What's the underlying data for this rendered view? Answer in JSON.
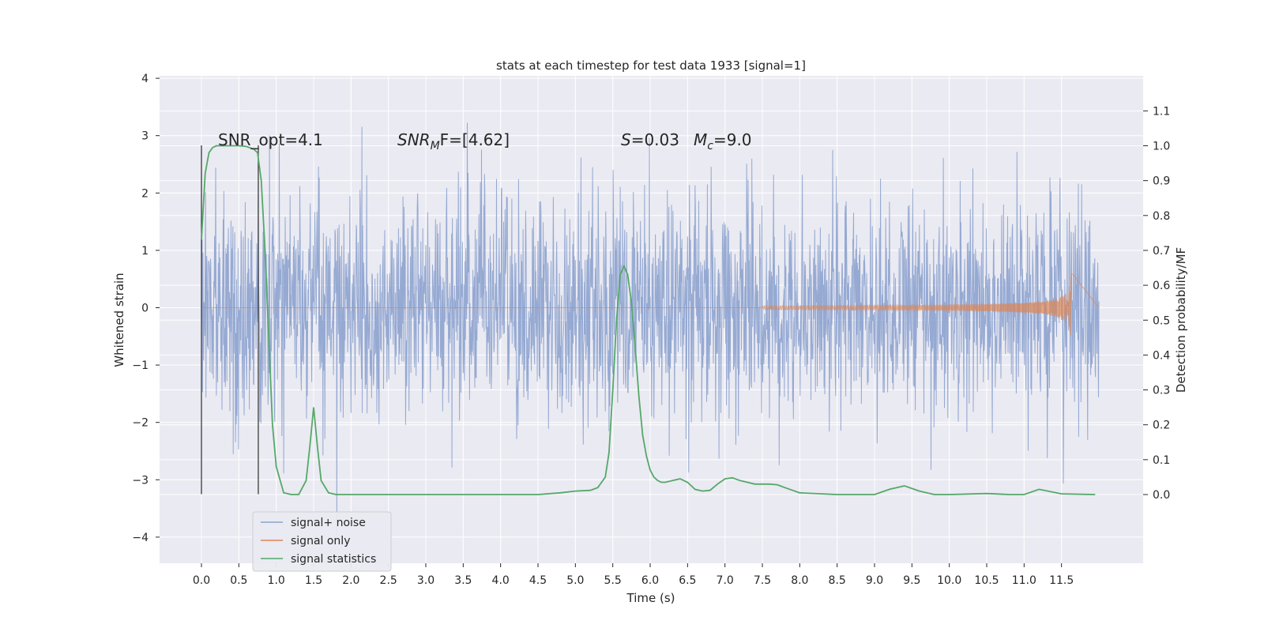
{
  "chart_data": {
    "type": "line",
    "title": "stats at each timestep for test data 1933 [signal=1]",
    "xlabel": "Time (s)",
    "ylabel": "Whitened strain",
    "ylabel_right": "Detection probability/MF",
    "xlim": [
      -0.6,
      12.6
    ],
    "ylim": [
      -4.5,
      4.0
    ],
    "ylim_right": [
      -0.2,
      1.2
    ],
    "x_ticks": [
      "0.0",
      "0.5",
      "1.0",
      "1.5",
      "2.0",
      "2.5",
      "3.0",
      "3.5",
      "4.0",
      "4.5",
      "5.0",
      "5.5",
      "6.0",
      "6.5",
      "7.0",
      "7.5",
      "8.0",
      "8.5",
      "9.0",
      "9.5",
      "10.0",
      "10.5",
      "11.0",
      "11.5"
    ],
    "y_ticks": [
      "4",
      "3",
      "2",
      "1",
      "0",
      "−1",
      "−2",
      "−3",
      "−4"
    ],
    "y_ticks_right": [
      "1.1",
      "1.0",
      "0.9",
      "0.8",
      "0.7",
      "0.6",
      "0.5",
      "0.4",
      "0.3",
      "0.2",
      "0.1",
      "0.0"
    ],
    "grid": true,
    "legend_position": "bottom-left",
    "annotations": {
      "snr_opt": "SNR_opt=4.1",
      "snr_mf_main": "SNR",
      "snr_mf_sub": "M",
      "snr_mf_rest": "F=[4.62]",
      "s_main": "S",
      "s_rest": "=0.03",
      "mc_main": "M",
      "mc_sub": "c",
      "mc_rest": "=9.0"
    },
    "vlines": [
      0.0,
      0.76
    ],
    "series": [
      {
        "name": "signal+ noise",
        "color": "#8ca2ce",
        "axis": "left",
        "x_range": [
          0.0,
          12.0
        ],
        "envelope_typical": 1.6,
        "envelope_peak": 3.6,
        "min_value": -4.1,
        "max_value": 3.65
      },
      {
        "name": "signal only",
        "color": "#dd8452",
        "axis": "left",
        "chirp_start": 7.5,
        "merger_time": 11.65,
        "peak_amplitude": 0.6
      },
      {
        "name": "signal statistics",
        "color": "#55a868",
        "axis": "right",
        "x": [
          0.0,
          0.05,
          0.1,
          0.15,
          0.2,
          0.3,
          0.4,
          0.5,
          0.6,
          0.7,
          0.75,
          0.8,
          0.85,
          0.9,
          0.95,
          1.0,
          1.1,
          1.2,
          1.3,
          1.4,
          1.45,
          1.5,
          1.55,
          1.6,
          1.7,
          1.8,
          2.0,
          3.0,
          4.0,
          4.5,
          4.8,
          5.0,
          5.2,
          5.3,
          5.4,
          5.45,
          5.5,
          5.55,
          5.6,
          5.65,
          5.7,
          5.75,
          5.8,
          5.85,
          5.9,
          5.95,
          6.0,
          6.05,
          6.1,
          6.15,
          6.2,
          6.3,
          6.4,
          6.5,
          6.6,
          6.7,
          6.8,
          6.9,
          7.0,
          7.1,
          7.2,
          7.3,
          7.4,
          7.5,
          7.6,
          7.7,
          7.8,
          8.0,
          8.5,
          9.0,
          9.2,
          9.4,
          9.6,
          9.8,
          10.0,
          10.5,
          10.8,
          11.0,
          11.2,
          11.5,
          11.95
        ],
        "y": [
          0.73,
          0.92,
          0.98,
          0.995,
          1.0,
          1.0,
          1.0,
          1.0,
          0.998,
          0.99,
          0.98,
          0.9,
          0.7,
          0.45,
          0.2,
          0.08,
          0.005,
          0.0,
          0.0,
          0.04,
          0.14,
          0.25,
          0.14,
          0.04,
          0.005,
          0.0,
          0.0,
          0.0,
          0.0,
          0.0,
          0.005,
          0.01,
          0.012,
          0.02,
          0.05,
          0.12,
          0.3,
          0.5,
          0.63,
          0.655,
          0.63,
          0.55,
          0.42,
          0.28,
          0.17,
          0.11,
          0.07,
          0.05,
          0.04,
          0.035,
          0.035,
          0.04,
          0.045,
          0.035,
          0.015,
          0.01,
          0.012,
          0.03,
          0.045,
          0.048,
          0.04,
          0.035,
          0.03,
          0.03,
          0.03,
          0.028,
          0.02,
          0.005,
          0.0,
          0.0,
          0.015,
          0.025,
          0.01,
          0.0,
          0.0,
          0.003,
          0.0,
          0.0,
          0.015,
          0.002,
          0.0
        ]
      }
    ]
  }
}
